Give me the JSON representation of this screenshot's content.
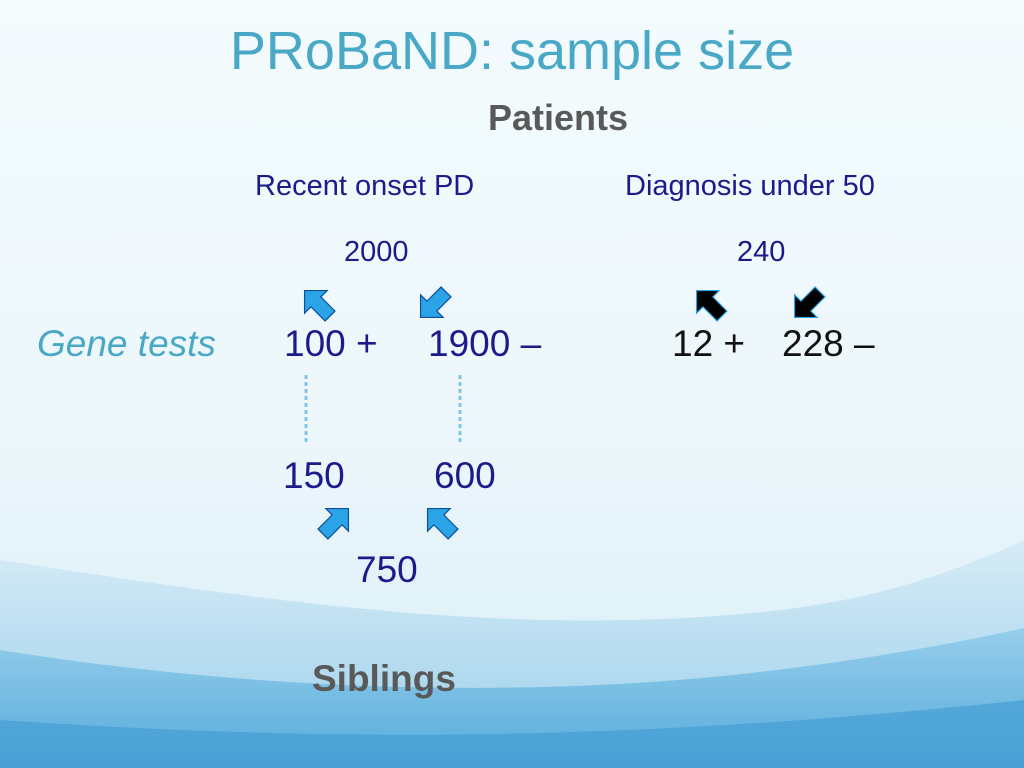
{
  "colors": {
    "title": "#4aa8c7",
    "heading": "#595959",
    "body": "#1b1b8c",
    "black_text": "#111111",
    "arrow_blue": "#2aa4e6",
    "arrow_black": "#000000",
    "background_light": "#f3fbfd",
    "background_wave": "#4aa5d8"
  },
  "slide": {
    "title": "PRoBaND: sample size",
    "patients_heading": "Patients",
    "siblings_heading": "Siblings",
    "row_label": "Gene tests"
  },
  "groups": {
    "recent_onset": {
      "label": "Recent onset PD",
      "total": "2000",
      "positive": "100 +",
      "negative": "1900 –"
    },
    "diagnosis_under_50": {
      "label": "Diagnosis under 50",
      "total": "240",
      "positive": "12 +",
      "negative": "228 –"
    }
  },
  "siblings": {
    "positive_group": "150",
    "negative_group": "600",
    "total": "750"
  },
  "icons": {
    "patient_arrows": "arrow-icon",
    "dashed_links": "dashed-line"
  }
}
